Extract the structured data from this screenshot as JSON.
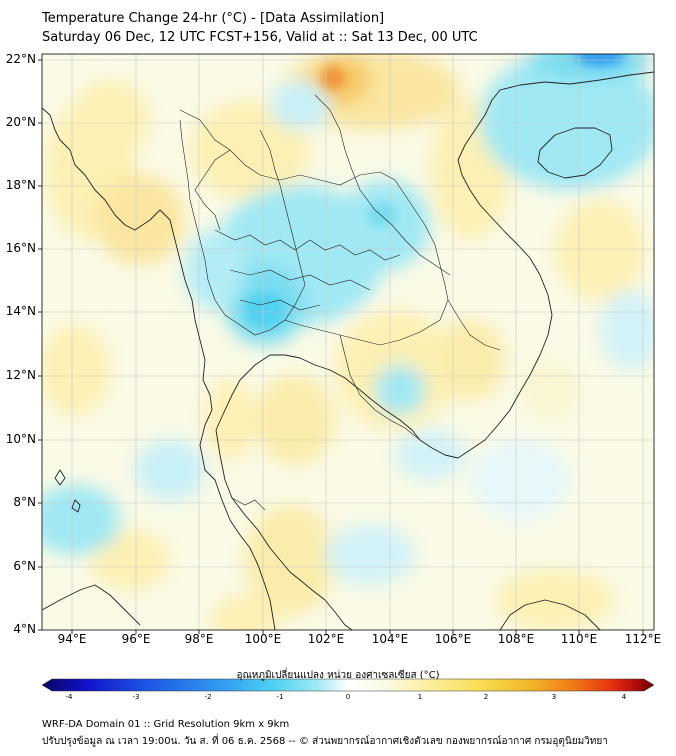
{
  "header": {
    "title": "Temperature Change 24-hr (°C) - [Data Assimilation]",
    "subtitle": "Saturday 06 Dec, 12 UTC FCST+156, Valid at :: Sat 13 Dec, 00 UTC"
  },
  "axes": {
    "lat_labels": [
      "22°N",
      "20°N",
      "18°N",
      "16°N",
      "14°N",
      "12°N",
      "10°N",
      "8°N",
      "6°N",
      "4°N"
    ],
    "lon_labels": [
      "94°E",
      "96°E",
      "98°E",
      "100°E",
      "102°E",
      "104°E",
      "106°E",
      "108°E",
      "110°E",
      "112°E"
    ],
    "lat_range": [
      4,
      22.2
    ],
    "lon_range": [
      93,
      112.3
    ]
  },
  "colorbar": {
    "title": "อุณหภูมิเปลี่ยนแปลง หน่วย องศาเซลเซียส (°C)",
    "ticks": [
      "-4",
      "-3",
      "-2",
      "-1",
      "0",
      "1",
      "2",
      "3",
      "4"
    ],
    "colors": [
      "#08085e",
      "#1010c8",
      "#1e5ae6",
      "#32a0f0",
      "#50d2f0",
      "#a0e8f4",
      "#e6f8fa",
      "#ffffff",
      "#fafae6",
      "#fcf0a0",
      "#fadc50",
      "#f0b428",
      "#f07814",
      "#e63210",
      "#b40a0a",
      "#640000"
    ]
  },
  "footer": {
    "line1": "WRF-DA Domain 01 :: Grid Resolution 9km x 9km",
    "line2": "ปรับปรุงข้อมูล ณ เวลา 19:00น. วัน ส. ที่ 06 ธ.ค. 2568 -- © ส่วนพยากรณ์อากาศเชิงตัวเลข กองพยากรณ์อากาศ กรมอุตุนิยมวิทยา"
  }
}
